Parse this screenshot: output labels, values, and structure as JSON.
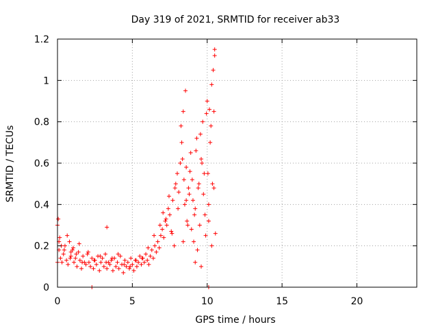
{
  "chart_data": {
    "type": "scatter",
    "title": "Day 319 of 2021, SRMTID for receiver ab33",
    "xlabel": "GPS time / hours",
    "ylabel": "SRMTID / TECUs",
    "xlim": [
      0,
      24
    ],
    "ylim": [
      0,
      1.2
    ],
    "x_ticks": [
      0,
      5,
      10,
      15,
      20
    ],
    "x_tick_labels": [
      "0",
      "5",
      "10",
      "15",
      "20"
    ],
    "y_ticks": [
      0,
      0.2,
      0.4,
      0.6,
      0.8,
      1.0,
      1.2
    ],
    "y_tick_labels": [
      "0",
      "0.2",
      "0.4",
      "0.6",
      "0.8",
      "1",
      "1.2"
    ],
    "grid": true,
    "series": [
      {
        "name": "SRMTID",
        "marker": "plus",
        "color": "#ff0000",
        "x": [
          0.0,
          0.1,
          0.2,
          0.3,
          0.4,
          0.5,
          0.6,
          0.7,
          0.8,
          0.9,
          1.0,
          1.1,
          1.2,
          1.3,
          1.4,
          1.5,
          1.6,
          1.7,
          1.8,
          1.9,
          2.0,
          2.1,
          2.2,
          2.3,
          2.4,
          2.5,
          2.6,
          2.7,
          2.8,
          2.9,
          3.0,
          3.1,
          3.2,
          3.3,
          3.4,
          3.5,
          3.6,
          3.7,
          3.8,
          3.9,
          4.0,
          4.1,
          4.2,
          4.3,
          4.4,
          4.5,
          4.6,
          4.7,
          4.8,
          4.9,
          5.0,
          5.1,
          5.2,
          5.3,
          5.4,
          5.5,
          5.6,
          5.7,
          5.8,
          5.9,
          6.0,
          6.1,
          6.2,
          6.3,
          6.4,
          6.5,
          6.6,
          6.7,
          6.8,
          6.9,
          7.0,
          7.1,
          7.2,
          7.3,
          7.4,
          7.5,
          7.6,
          7.7,
          7.8,
          7.9,
          8.0,
          8.1,
          8.2,
          8.3,
          8.4,
          8.5,
          8.6,
          8.7,
          8.8,
          8.9,
          9.0,
          9.1,
          9.2,
          9.3,
          9.4,
          9.5,
          9.6,
          9.7,
          9.8,
          9.9,
          10.0,
          10.1,
          10.2,
          10.3,
          10.4,
          10.5,
          0.05,
          0.15,
          0.25,
          0.45,
          0.65,
          0.85,
          1.05,
          1.25,
          1.45,
          1.65,
          2.05,
          2.45,
          2.85,
          3.25,
          3.65,
          4.05,
          4.45,
          4.85,
          5.25,
          5.65,
          6.05,
          6.45,
          6.85,
          7.05,
          7.25,
          7.45,
          7.65,
          7.85,
          8.05,
          8.25,
          8.35,
          8.45,
          8.55,
          8.65,
          8.75,
          8.85,
          8.95,
          9.05,
          9.15,
          9.25,
          9.35,
          9.45,
          9.55,
          9.65,
          9.75,
          9.85,
          9.95,
          10.05,
          10.15,
          10.25,
          10.35,
          10.45,
          10.55,
          0.0,
          0.1,
          0.9,
          3.3,
          8.4,
          8.6,
          9.2,
          9.6,
          10.1,
          10.3,
          10.45,
          10.5,
          2.3,
          10.1
        ],
        "y": [
          0.3,
          0.18,
          0.14,
          0.12,
          0.16,
          0.2,
          0.13,
          0.11,
          0.22,
          0.15,
          0.18,
          0.12,
          0.14,
          0.1,
          0.17,
          0.13,
          0.09,
          0.15,
          0.12,
          0.11,
          0.16,
          0.12,
          0.1,
          0.14,
          0.09,
          0.13,
          0.11,
          0.15,
          0.08,
          0.12,
          0.14,
          0.1,
          0.16,
          0.09,
          0.12,
          0.11,
          0.13,
          0.08,
          0.14,
          0.1,
          0.12,
          0.09,
          0.15,
          0.11,
          0.07,
          0.13,
          0.1,
          0.12,
          0.09,
          0.14,
          0.11,
          0.08,
          0.13,
          0.1,
          0.12,
          0.15,
          0.11,
          0.14,
          0.12,
          0.16,
          0.13,
          0.11,
          0.15,
          0.18,
          0.14,
          0.2,
          0.17,
          0.22,
          0.19,
          0.25,
          0.28,
          0.24,
          0.32,
          0.3,
          0.38,
          0.35,
          0.27,
          0.42,
          0.2,
          0.5,
          0.55,
          0.46,
          0.6,
          0.7,
          0.85,
          0.4,
          0.58,
          0.3,
          0.45,
          0.65,
          0.52,
          0.22,
          0.38,
          0.72,
          0.48,
          0.3,
          0.62,
          0.8,
          0.55,
          0.25,
          0.9,
          0.4,
          0.7,
          0.98,
          1.05,
          1.15,
          0.33,
          0.24,
          0.2,
          0.18,
          0.25,
          0.14,
          0.19,
          0.16,
          0.21,
          0.12,
          0.17,
          0.13,
          0.15,
          0.12,
          0.14,
          0.16,
          0.11,
          0.1,
          0.13,
          0.14,
          0.19,
          0.25,
          0.3,
          0.36,
          0.33,
          0.44,
          0.26,
          0.48,
          0.38,
          0.78,
          0.62,
          0.52,
          0.95,
          0.32,
          0.48,
          0.56,
          0.28,
          0.42,
          0.35,
          0.66,
          0.18,
          0.5,
          0.74,
          0.6,
          0.45,
          0.35,
          0.84,
          0.55,
          0.86,
          0.78,
          0.5,
          0.48,
          0.26,
          0.12,
          0.22,
          0.17,
          0.29,
          0.22,
          0.42,
          0.12,
          0.1,
          0.32,
          0.2,
          0.85,
          1.12,
          0.0,
          0.0
        ]
      }
    ]
  }
}
